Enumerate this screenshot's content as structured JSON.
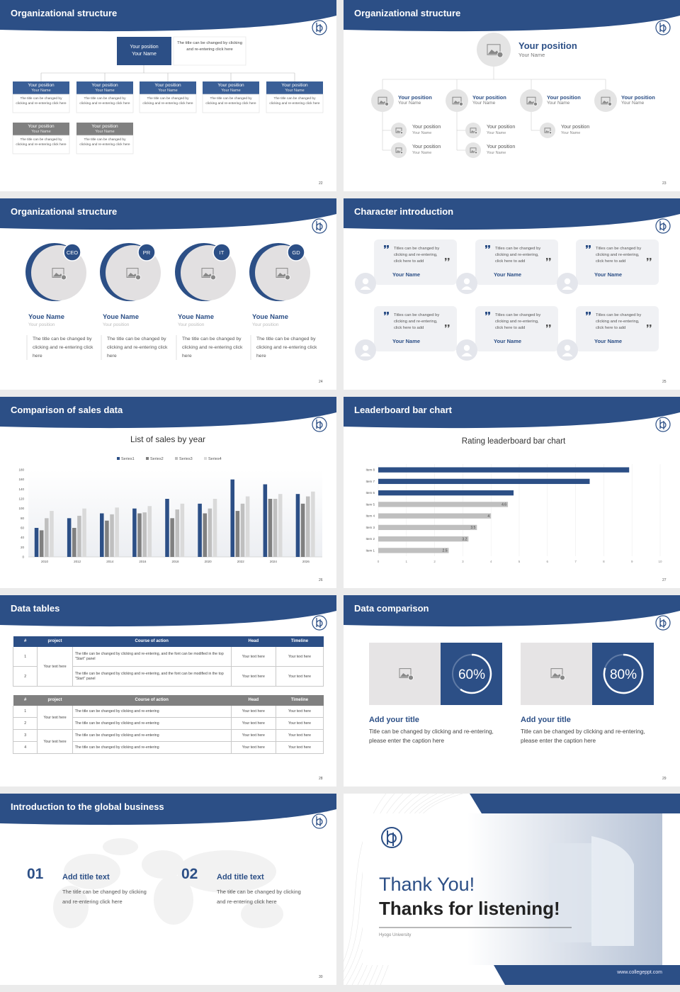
{
  "slides": [
    {
      "title": "Organizational structure",
      "page": "22",
      "top": {
        "position": "Your position",
        "name": "Your Name",
        "note": "The title can be changed by clicking and re-entering click here"
      },
      "boxes": [
        {
          "position": "Your position",
          "name": "Your Name",
          "text": "The title can be changed by clicking and re-entering click here"
        },
        {
          "position": "Your position",
          "name": "Your Name",
          "text": "The title can be changed by clicking and re-entering click here"
        },
        {
          "position": "Your position",
          "name": "Your Name",
          "text": "The title can be changed by clicking and re-entering click here"
        },
        {
          "position": "Your position",
          "name": "Your Name",
          "text": "The title can be changed by clicking and re-entering click here"
        },
        {
          "position": "Your position",
          "name": "Your Name",
          "text": "The title can be changed by clicking and re-entering click here"
        },
        {
          "position": "Your position",
          "name": "Your Name",
          "text": "The title can be changed by clicking and re-entering click here"
        },
        {
          "position": "Your position",
          "name": "Your Name",
          "text": "The title can be changed by clicking and re-entering click here"
        }
      ]
    },
    {
      "title": "Organizational structure",
      "page": "23",
      "top": {
        "position": "Your position",
        "name": "Your Name"
      },
      "branches": [
        {
          "position": "Your position",
          "name": "Your Name",
          "children": [
            {
              "position": "Your position",
              "name": "Your Name"
            },
            {
              "position": "Your position",
              "name": "Your Name"
            }
          ]
        },
        {
          "position": "Your position",
          "name": "Your Name",
          "children": [
            {
              "position": "Your position",
              "name": "Your Name"
            },
            {
              "position": "Your position",
              "name": "Your Name"
            }
          ]
        },
        {
          "position": "Your position",
          "name": "Your Name",
          "children": [
            {
              "position": "Your position",
              "name": "Your Name"
            }
          ]
        },
        {
          "position": "Your position",
          "name": "Your Name",
          "children": []
        }
      ]
    },
    {
      "title": "Organizational structure",
      "page": "24",
      "people": [
        {
          "badge": "CEO",
          "name": "Youe Name",
          "position": "Your position",
          "text": "The title can be changed by clicking and re-entering click here"
        },
        {
          "badge": "PR",
          "name": "Youe Name",
          "position": "Your position",
          "text": "The title can be changed by clicking and re-entering click here"
        },
        {
          "badge": "IT",
          "name": "Youe Name",
          "position": "Your position",
          "text": "The title can be changed by clicking and re-entering click here"
        },
        {
          "badge": "GD",
          "name": "Youe Name",
          "position": "Your position",
          "text": "The title can be changed by clicking and re-entering click here"
        }
      ]
    },
    {
      "title": "Character introduction",
      "page": "25",
      "cards": [
        {
          "text": "Titles can be changed by clicking and re-entering, click here to add",
          "name": "Your Name"
        },
        {
          "text": "Titles can be changed by clicking and re-entering, click here to add",
          "name": "Your Name"
        },
        {
          "text": "Titles can be changed by clicking and re-entering, click here to add",
          "name": "Your Name"
        },
        {
          "text": "Titles can be changed by clicking and re-entering, click here to add",
          "name": "Your Name"
        },
        {
          "text": "Titles can be changed by clicking and re-entering, click here to add",
          "name": "Your Name"
        },
        {
          "text": "Titles can be changed by clicking and re-entering, click here to add",
          "name": "Your Name"
        }
      ]
    },
    {
      "title": "Comparison of sales data",
      "page": "26",
      "chart_data": {
        "type": "bar",
        "title": "List of sales by year",
        "categories": [
          "2010",
          "2012",
          "2014",
          "2016",
          "2018",
          "2020",
          "2022",
          "2024",
          "2026"
        ],
        "series": [
          {
            "name": "Series1",
            "color": "#2c4f86",
            "values": [
              60,
              80,
              90,
              100,
              120,
              110,
              160,
              150,
              130
            ]
          },
          {
            "name": "Series2",
            "color": "#808080",
            "values": [
              55,
              60,
              75,
              90,
              80,
              90,
              95,
              120,
              110
            ]
          },
          {
            "name": "Series3",
            "color": "#bfbfbf",
            "values": [
              80,
              85,
              88,
              92,
              98,
              100,
              110,
              120,
              125
            ]
          },
          {
            "name": "Series4",
            "color": "#dadada",
            "values": [
              95,
              100,
              102,
              105,
              110,
              120,
              125,
              130,
              135
            ]
          }
        ],
        "ylim": [
          0,
          180
        ],
        "yticks": [
          0,
          20,
          40,
          60,
          80,
          100,
          120,
          140,
          160,
          180
        ],
        "grid": false,
        "legend": "top"
      }
    },
    {
      "title": "Leaderboard bar chart",
      "page": "27",
      "chart_data": {
        "type": "hbar",
        "title": "Rating leaderboard bar chart",
        "categories": [
          "Item 1",
          "Item 2",
          "Item 3",
          "Item 4",
          "Item 5",
          "Item 6",
          "Item 7",
          "Item 8"
        ],
        "values": [
          2.5,
          3.2,
          3.5,
          4,
          4.6,
          4.8,
          7.5,
          8.9
        ],
        "value_labels": [
          "2.5",
          "3.2",
          "3.5",
          "4",
          "4.6",
          null,
          null,
          null
        ],
        "colors": [
          "#bfbfbf",
          "#bfbfbf",
          "#bfbfbf",
          "#bfbfbf",
          "#bfbfbf",
          "#2c4f86",
          "#2c4f86",
          "#2c4f86"
        ],
        "xlim": [
          0,
          10
        ],
        "xticks": [
          0,
          1,
          2,
          3,
          4,
          5,
          6,
          7,
          8,
          9,
          10
        ],
        "grid": true
      }
    },
    {
      "title": "Data tables",
      "page": "28",
      "tables": [
        {
          "header": [
            "#",
            "project",
            "Course of action",
            "Head",
            "Timeline"
          ],
          "groups": [
            {
              "project": "Your text here",
              "rows": [
                {
                  "no": "1",
                  "action": "The title can be changed by clicking and re-entering, and the font can be modified in the top \"Start\" panel",
                  "head": "Your text here",
                  "timeline": "Your text here"
                },
                {
                  "no": "2",
                  "action": "The title can be changed by clicking and re-entering, and the font can be modified in the top \"Start\" panel",
                  "head": "Your text here",
                  "timeline": "Your text here"
                }
              ]
            }
          ]
        },
        {
          "header": [
            "#",
            "project",
            "Course of action",
            "Head",
            "Timeline"
          ],
          "groups": [
            {
              "project": "Your text here",
              "rows": [
                {
                  "no": "1",
                  "action": "The title can be changed by clicking and re-entering",
                  "head": "Your text here",
                  "timeline": "Your text here"
                },
                {
                  "no": "2",
                  "action": "The title can be changed by clicking and re-entering",
                  "head": "Your text here",
                  "timeline": "Your text here"
                }
              ]
            },
            {
              "project": "Your text here",
              "rows": [
                {
                  "no": "3",
                  "action": "The title can be changed by clicking and re-entering",
                  "head": "Your text here",
                  "timeline": "Your text here"
                },
                {
                  "no": "4",
                  "action": "The title can be changed by clicking and re-entering",
                  "head": "Your text here",
                  "timeline": "Your text here"
                }
              ]
            }
          ]
        }
      ]
    },
    {
      "title": "Data comparison",
      "page": "29",
      "cards": [
        {
          "value": 60,
          "value_label": "60%",
          "title": "Add your title",
          "text": "Title can be changed by clicking and re-entering, please enter the caption here"
        },
        {
          "value": 80,
          "value_label": "80%",
          "title": "Add your title",
          "text": "Title can be changed by clicking and re-entering, please enter the caption here"
        }
      ]
    },
    {
      "title": "Introduction to the global business",
      "page": "30",
      "items": [
        {
          "number": "01",
          "title": "Add title text",
          "text": "The title can be changed by clicking and re-entering click here"
        },
        {
          "number": "02",
          "title": "Add title text",
          "text": "The title can be changed by clicking and re-entering click here"
        }
      ]
    },
    {
      "heading": "Thank You!",
      "subheading": "Thanks for listening!",
      "school": "Hyogo University",
      "website": "www.collegeppt.com"
    }
  ]
}
